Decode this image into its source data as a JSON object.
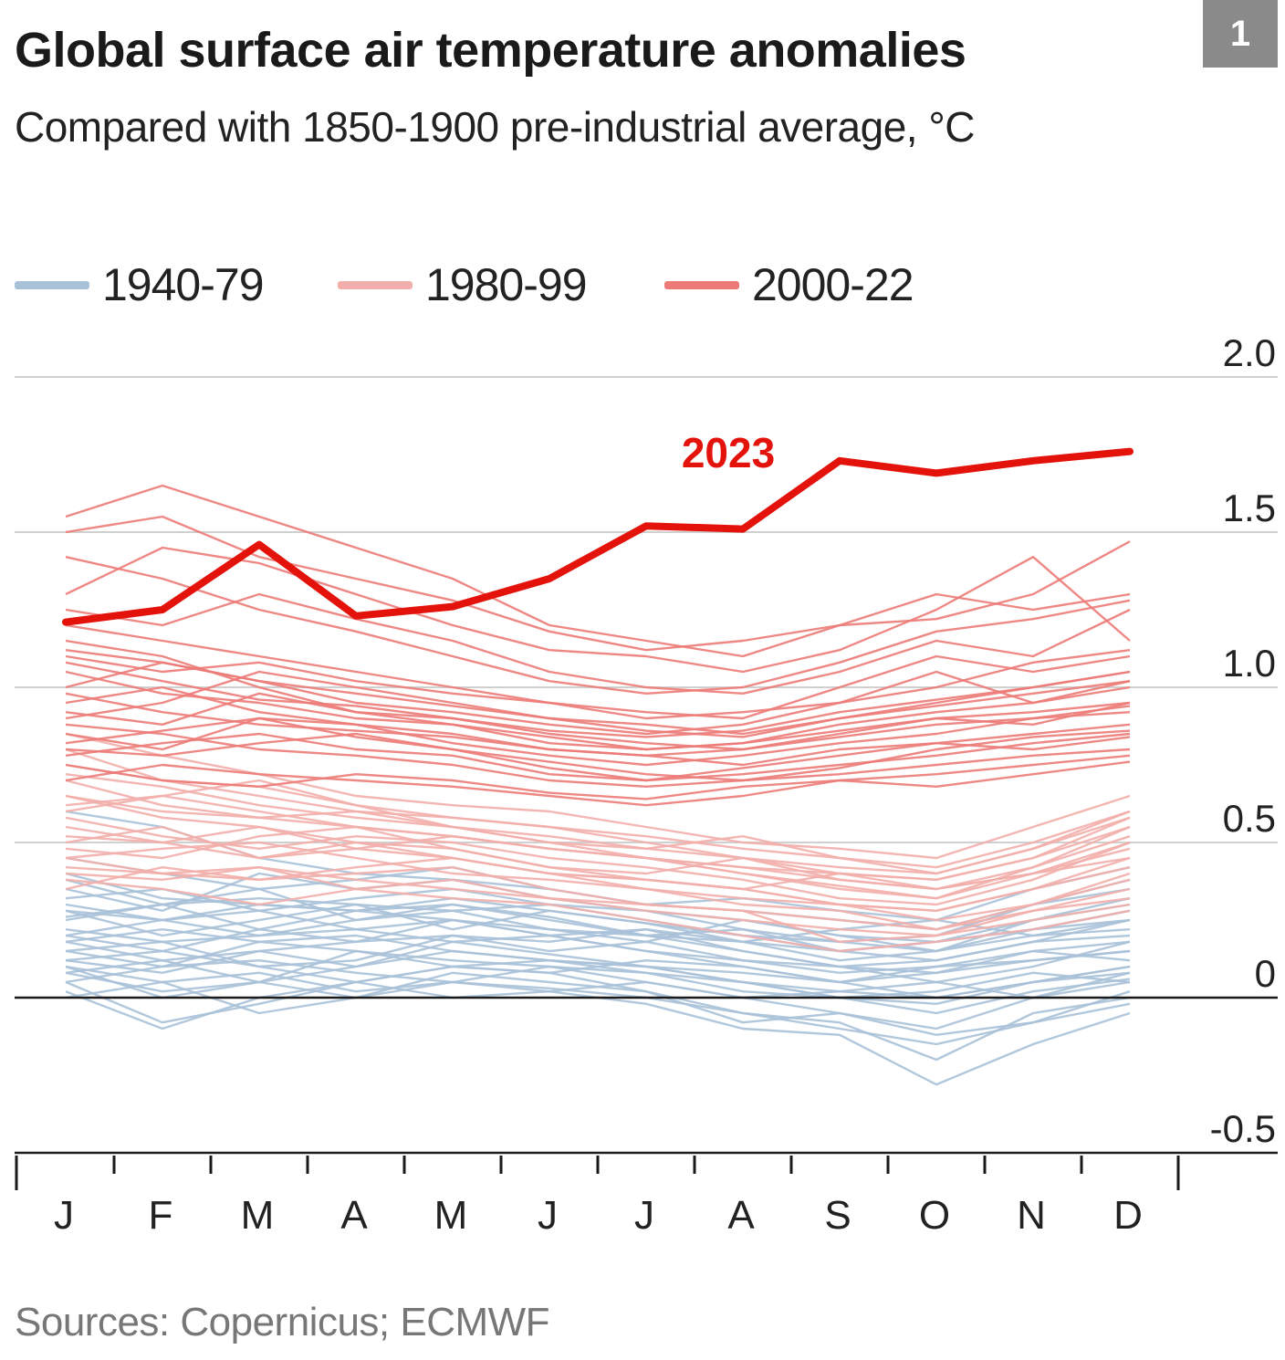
{
  "header": {
    "title": "Global surface air temperature anomalies",
    "subtitle": "Compared with 1850-1900 pre-industrial average, °C",
    "badge": "1"
  },
  "legend": [
    {
      "label": "1940-79",
      "color": "#a9c1d8"
    },
    {
      "label": "1980-99",
      "color": "#f2aeaa"
    },
    {
      "label": "2000-22",
      "color": "#ec7b78"
    }
  ],
  "source": "Sources: Copernicus; ECMWF",
  "chart_data": {
    "type": "line",
    "categories": [
      "J",
      "F",
      "M",
      "A",
      "M",
      "J",
      "J",
      "A",
      "S",
      "O",
      "N",
      "D"
    ],
    "ylim": [
      -0.5,
      2.0
    ],
    "yticks": [
      "2.0",
      "1.5",
      "1.0",
      "0.5",
      "0",
      "-0.5"
    ],
    "grid": true,
    "legend_position": "top-left",
    "highlight": {
      "name": "2023",
      "color": "#e3120b",
      "values": [
        1.21,
        1.25,
        1.46,
        1.23,
        1.26,
        1.35,
        1.52,
        1.51,
        1.73,
        1.69,
        1.73,
        1.76
      ]
    },
    "groups": [
      {
        "name": "1940-79",
        "color": "#a9c1d8",
        "series": [
          [
            0.12,
            0.08,
            0.15,
            0.1,
            0.18,
            0.14,
            0.1,
            0.05,
            0.0,
            -0.05,
            0.02,
            0.06
          ],
          [
            0.2,
            0.15,
            0.22,
            0.18,
            0.25,
            0.2,
            0.15,
            0.1,
            0.05,
            0.08,
            0.12,
            0.15
          ],
          [
            0.05,
            -0.08,
            -0.02,
            0.05,
            0.1,
            0.08,
            0.02,
            -0.05,
            -0.1,
            -0.15,
            -0.08,
            -0.02
          ],
          [
            0.3,
            0.25,
            0.28,
            0.32,
            0.35,
            0.3,
            0.25,
            0.2,
            0.15,
            0.18,
            0.22,
            0.28
          ],
          [
            0.15,
            0.18,
            0.1,
            0.12,
            0.2,
            0.18,
            0.22,
            0.15,
            0.1,
            0.05,
            0.1,
            0.18
          ],
          [
            0.4,
            0.32,
            0.3,
            0.28,
            0.3,
            0.25,
            0.2,
            0.18,
            0.12,
            0.15,
            0.2,
            0.25
          ],
          [
            0.0,
            0.05,
            0.08,
            0.02,
            0.05,
            0.03,
            0.0,
            -0.05,
            -0.08,
            -0.2,
            -0.05,
            0.0
          ],
          [
            0.25,
            0.3,
            0.35,
            0.25,
            0.28,
            0.22,
            0.18,
            0.25,
            0.2,
            0.15,
            0.25,
            0.3
          ],
          [
            0.1,
            0.0,
            0.05,
            0.15,
            0.12,
            0.1,
            0.08,
            0.02,
            0.0,
            0.02,
            0.08,
            0.05
          ],
          [
            0.35,
            0.28,
            0.4,
            0.35,
            0.38,
            0.32,
            0.28,
            0.22,
            0.18,
            0.2,
            0.3,
            0.35
          ],
          [
            0.18,
            0.22,
            0.18,
            0.2,
            0.15,
            0.12,
            0.1,
            0.08,
            0.05,
            0.1,
            0.15,
            0.12
          ],
          [
            0.08,
            0.12,
            0.05,
            0.0,
            0.08,
            0.05,
            0.02,
            -0.08,
            -0.05,
            -0.1,
            0.0,
            0.08
          ],
          [
            0.28,
            0.2,
            0.25,
            0.3,
            0.22,
            0.28,
            0.24,
            0.18,
            0.22,
            0.25,
            0.2,
            0.22
          ],
          [
            0.45,
            0.4,
            0.35,
            0.38,
            0.42,
            0.35,
            0.3,
            0.28,
            0.25,
            0.22,
            0.3,
            0.38
          ],
          [
            0.02,
            -0.1,
            0.0,
            0.05,
            0.0,
            0.02,
            -0.02,
            -0.1,
            -0.12,
            -0.28,
            -0.15,
            -0.05
          ],
          [
            0.22,
            0.18,
            0.2,
            0.25,
            0.3,
            0.26,
            0.2,
            0.15,
            0.1,
            0.12,
            0.18,
            0.2
          ],
          [
            0.15,
            0.1,
            0.18,
            0.15,
            0.1,
            0.08,
            0.12,
            0.1,
            0.05,
            0.0,
            0.05,
            0.1
          ],
          [
            0.32,
            0.35,
            0.28,
            0.22,
            0.25,
            0.2,
            0.22,
            0.18,
            0.15,
            0.12,
            0.18,
            0.25
          ],
          [
            0.1,
            0.05,
            -0.05,
            0.0,
            0.05,
            0.02,
            0.05,
            0.0,
            -0.05,
            -0.12,
            -0.08,
            0.02
          ],
          [
            0.26,
            0.3,
            0.22,
            0.28,
            0.32,
            0.28,
            0.24,
            0.2,
            0.18,
            0.15,
            0.22,
            0.28
          ],
          [
            0.05,
            0.1,
            0.12,
            0.08,
            0.05,
            0.1,
            0.05,
            0.0,
            0.02,
            0.05,
            0.0,
            0.05
          ],
          [
            0.38,
            0.3,
            0.32,
            0.3,
            0.28,
            0.3,
            0.28,
            0.25,
            0.2,
            0.18,
            0.25,
            0.32
          ],
          [
            0.18,
            0.12,
            0.15,
            0.18,
            0.2,
            0.15,
            0.18,
            0.12,
            0.08,
            0.1,
            0.12,
            0.15
          ],
          [
            0.6,
            0.55,
            0.45,
            0.4,
            0.38,
            0.35,
            0.3,
            0.32,
            0.28,
            0.25,
            0.35,
            0.42
          ],
          [
            0.12,
            0.15,
            0.1,
            0.05,
            0.1,
            0.12,
            0.08,
            0.05,
            0.02,
            0.0,
            0.05,
            0.1
          ],
          [
            0.28,
            0.25,
            0.3,
            0.28,
            0.25,
            0.22,
            0.2,
            0.22,
            0.15,
            0.18,
            0.22,
            0.25
          ],
          [
            0.08,
            0.02,
            0.05,
            0.1,
            0.15,
            0.12,
            0.1,
            0.05,
            0.0,
            -0.02,
            0.05,
            0.08
          ],
          [
            0.2,
            0.25,
            0.2,
            0.22,
            0.18,
            0.2,
            0.15,
            0.12,
            0.1,
            0.08,
            0.15,
            0.18
          ]
        ]
      },
      {
        "name": "1980-99",
        "color": "#f2aeaa",
        "series": [
          [
            0.4,
            0.38,
            0.42,
            0.35,
            0.38,
            0.32,
            0.28,
            0.25,
            0.22,
            0.2,
            0.28,
            0.35
          ],
          [
            0.55,
            0.5,
            0.55,
            0.48,
            0.45,
            0.4,
            0.38,
            0.35,
            0.3,
            0.28,
            0.35,
            0.45
          ],
          [
            0.35,
            0.42,
            0.38,
            0.4,
            0.42,
            0.35,
            0.3,
            0.28,
            0.18,
            0.2,
            0.25,
            0.3
          ],
          [
            0.65,
            0.6,
            0.58,
            0.55,
            0.52,
            0.48,
            0.45,
            0.42,
            0.4,
            0.38,
            0.45,
            0.55
          ],
          [
            0.45,
            0.48,
            0.5,
            0.45,
            0.4,
            0.38,
            0.35,
            0.32,
            0.3,
            0.25,
            0.3,
            0.4
          ],
          [
            0.8,
            0.7,
            0.65,
            0.6,
            0.58,
            0.55,
            0.52,
            0.48,
            0.45,
            0.42,
            0.5,
            0.6
          ],
          [
            0.5,
            0.55,
            0.45,
            0.5,
            0.48,
            0.42,
            0.4,
            0.45,
            0.38,
            0.35,
            0.4,
            0.48
          ],
          [
            0.38,
            0.35,
            0.3,
            0.35,
            0.32,
            0.3,
            0.25,
            0.2,
            0.15,
            0.18,
            0.22,
            0.28
          ],
          [
            0.6,
            0.65,
            0.7,
            0.62,
            0.55,
            0.52,
            0.48,
            0.52,
            0.45,
            0.4,
            0.48,
            0.58
          ],
          [
            0.72,
            0.68,
            0.62,
            0.58,
            0.55,
            0.5,
            0.45,
            0.4,
            0.35,
            0.32,
            0.42,
            0.52
          ],
          [
            0.42,
            0.4,
            0.38,
            0.42,
            0.45,
            0.4,
            0.35,
            0.3,
            0.28,
            0.22,
            0.3,
            0.38
          ],
          [
            0.58,
            0.52,
            0.48,
            0.52,
            0.5,
            0.45,
            0.42,
            0.38,
            0.32,
            0.3,
            0.38,
            0.5
          ],
          [
            0.85,
            0.78,
            0.72,
            0.65,
            0.62,
            0.6,
            0.55,
            0.5,
            0.48,
            0.45,
            0.55,
            0.65
          ],
          [
            0.48,
            0.45,
            0.52,
            0.55,
            0.48,
            0.42,
            0.38,
            0.35,
            0.3,
            0.28,
            0.35,
            0.42
          ],
          [
            0.65,
            0.58,
            0.55,
            0.5,
            0.45,
            0.4,
            0.38,
            0.35,
            0.4,
            0.35,
            0.42,
            0.55
          ],
          [
            0.52,
            0.5,
            0.45,
            0.48,
            0.52,
            0.48,
            0.45,
            0.42,
            0.38,
            0.35,
            0.4,
            0.45
          ],
          [
            0.75,
            0.7,
            0.68,
            0.62,
            0.58,
            0.55,
            0.5,
            0.45,
            0.4,
            0.38,
            0.45,
            0.58
          ],
          [
            0.45,
            0.4,
            0.42,
            0.38,
            0.35,
            0.32,
            0.3,
            0.28,
            0.25,
            0.22,
            0.28,
            0.32
          ],
          [
            0.62,
            0.65,
            0.6,
            0.55,
            0.52,
            0.48,
            0.45,
            0.4,
            0.36,
            0.32,
            0.4,
            0.5
          ],
          [
            0.7,
            0.62,
            0.58,
            0.6,
            0.55,
            0.5,
            0.48,
            0.45,
            0.42,
            0.4,
            0.48,
            0.6
          ]
        ]
      },
      {
        "name": "2000-22",
        "color": "#ec7b78",
        "series": [
          [
            1.55,
            1.65,
            1.55,
            1.45,
            1.35,
            1.2,
            1.15,
            1.1,
            1.2,
            1.3,
            1.25,
            1.3
          ],
          [
            1.3,
            1.45,
            1.4,
            1.3,
            1.2,
            1.12,
            1.1,
            1.05,
            1.12,
            1.25,
            1.42,
            1.15
          ],
          [
            1.5,
            1.55,
            1.42,
            1.35,
            1.28,
            1.18,
            1.12,
            1.15,
            1.2,
            1.22,
            1.3,
            1.47
          ],
          [
            1.25,
            1.2,
            1.3,
            1.22,
            1.15,
            1.05,
            1.0,
            0.98,
            1.05,
            1.15,
            1.1,
            1.25
          ],
          [
            1.1,
            1.05,
            1.08,
            1.02,
            0.98,
            0.95,
            0.92,
            0.9,
            1.0,
            1.1,
            1.05,
            1.1
          ],
          [
            1.0,
            1.08,
            1.02,
            0.95,
            0.92,
            0.88,
            0.85,
            0.88,
            0.95,
            1.05,
            0.95,
            1.0
          ],
          [
            0.9,
            0.95,
            1.05,
            1.0,
            0.95,
            0.9,
            0.88,
            0.85,
            0.9,
            0.95,
            1.0,
            1.05
          ],
          [
            1.15,
            1.1,
            1.0,
            0.92,
            0.9,
            0.85,
            0.82,
            0.8,
            0.85,
            0.9,
            0.88,
            0.95
          ],
          [
            0.85,
            0.8,
            0.9,
            0.88,
            0.82,
            0.78,
            0.75,
            0.78,
            0.82,
            0.85,
            0.9,
            0.92
          ],
          [
            0.95,
            1.0,
            0.92,
            0.88,
            0.85,
            0.8,
            0.78,
            0.75,
            0.8,
            0.82,
            0.85,
            0.88
          ],
          [
            0.78,
            0.82,
            0.85,
            0.8,
            0.78,
            0.72,
            0.7,
            0.72,
            0.75,
            0.78,
            0.82,
            0.85
          ],
          [
            1.05,
            0.98,
            0.95,
            0.9,
            0.88,
            0.82,
            0.8,
            0.82,
            0.88,
            0.92,
            0.95,
            1.02
          ],
          [
            0.7,
            0.75,
            0.72,
            0.7,
            0.68,
            0.65,
            0.62,
            0.65,
            0.7,
            0.72,
            0.75,
            0.78
          ],
          [
            0.88,
            0.85,
            0.8,
            0.78,
            0.75,
            0.7,
            0.68,
            0.7,
            0.72,
            0.75,
            0.78,
            0.8
          ],
          [
            1.2,
            1.15,
            1.1,
            1.05,
            1.0,
            0.95,
            0.9,
            0.92,
            0.95,
            1.0,
            1.08,
            1.12
          ],
          [
            0.8,
            0.78,
            0.82,
            0.85,
            0.8,
            0.76,
            0.72,
            0.7,
            0.74,
            0.8,
            0.84,
            0.86
          ],
          [
            0.92,
            0.88,
            0.98,
            0.92,
            0.88,
            0.84,
            0.8,
            0.82,
            0.86,
            0.9,
            0.92,
            0.95
          ],
          [
            0.75,
            0.7,
            0.68,
            0.72,
            0.7,
            0.66,
            0.64,
            0.68,
            0.7,
            0.68,
            0.72,
            0.76
          ],
          [
            1.08,
            1.02,
            0.96,
            0.94,
            0.9,
            0.86,
            0.84,
            0.86,
            0.92,
            0.96,
            1.0,
            1.05
          ],
          [
            0.98,
            0.92,
            0.88,
            0.86,
            0.84,
            0.8,
            0.78,
            0.8,
            0.84,
            0.88,
            0.9,
            0.94
          ],
          [
            0.82,
            0.86,
            0.9,
            0.84,
            0.8,
            0.74,
            0.7,
            0.74,
            0.78,
            0.82,
            0.8,
            0.84
          ],
          [
            1.12,
            1.08,
            1.02,
            0.98,
            0.94,
            0.9,
            0.86,
            0.84,
            0.9,
            0.94,
            0.98,
            1.02
          ],
          [
            1.42,
            1.35,
            1.25,
            1.18,
            1.1,
            1.02,
            0.98,
            1.0,
            1.08,
            1.18,
            1.22,
            1.28
          ]
        ]
      }
    ]
  }
}
